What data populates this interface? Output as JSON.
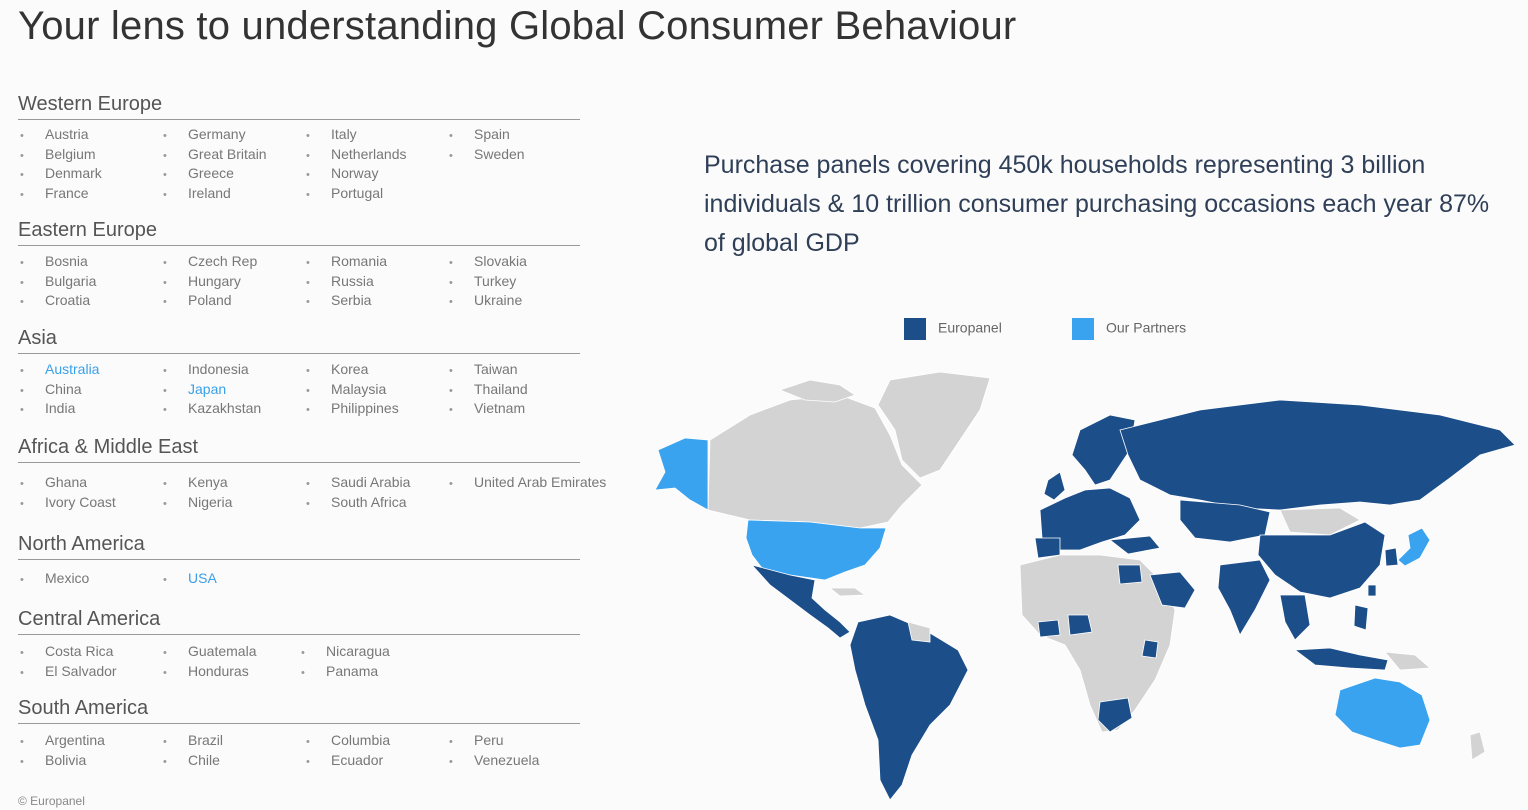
{
  "page": {
    "title": "Your lens to understanding Global Consumer Behaviour",
    "copyright": "© Europanel"
  },
  "headline": "Purchase panels covering 450k households representing 3 billion individuals & 10 trillion consumer purchasing occasions each year 87% of global GDP",
  "legend": {
    "europanel_label": "Europanel",
    "partners_label": "Our Partners",
    "europanel_color": "#1c4f8a",
    "partners_color": "#3aa3ef",
    "other_color": "#d3d3d3"
  },
  "regions": [
    {
      "name": "Western Europe",
      "columns": [
        [
          "Austria",
          "Belgium",
          "Denmark",
          "France"
        ],
        [
          "Germany",
          "Great Britain",
          "Greece",
          "Ireland"
        ],
        [
          "Italy",
          "Netherlands",
          "Norway",
          "Portugal"
        ],
        [
          "Spain",
          "Sweden"
        ]
      ]
    },
    {
      "name": "Eastern Europe",
      "columns": [
        [
          "Bosnia",
          "Bulgaria",
          "Croatia"
        ],
        [
          "Czech Rep",
          "Hungary",
          "Poland"
        ],
        [
          "Romania",
          "Russia",
          "Serbia"
        ],
        [
          "Slovakia",
          "Turkey",
          "Ukraine"
        ]
      ]
    },
    {
      "name": "Asia",
      "columns": [
        [
          "Australia",
          "China",
          "India"
        ],
        [
          "Indonesia",
          "Japan",
          "Kazakhstan"
        ],
        [
          "Korea",
          "Malaysia",
          "Philippines"
        ],
        [
          "Taiwan",
          "Thailand",
          "Vietnam"
        ]
      ]
    },
    {
      "name": "Africa & Middle East",
      "columns": [
        [
          "Ghana",
          "Ivory Coast"
        ],
        [
          "Kenya",
          "Nigeria"
        ],
        [
          "Saudi Arabia",
          "South Africa"
        ],
        [
          "United Arab Emirates"
        ]
      ]
    },
    {
      "name": "North America",
      "columns": [
        [
          "Mexico"
        ],
        [
          "USA"
        ]
      ]
    },
    {
      "name": "Central America",
      "columns": [
        [
          "Costa Rica",
          "El Salvador"
        ],
        [
          "Guatemala",
          "Honduras"
        ],
        [
          "Nicaragua",
          "Panama"
        ]
      ]
    },
    {
      "name": "South America",
      "columns": [
        [
          "Argentina",
          "Bolivia"
        ],
        [
          "Brazil",
          "Chile"
        ],
        [
          "Columbia",
          "Ecuador"
        ],
        [
          "Peru",
          "Venezuela"
        ]
      ]
    }
  ],
  "highlighted_countries": [
    "Australia",
    "Japan",
    "USA"
  ]
}
